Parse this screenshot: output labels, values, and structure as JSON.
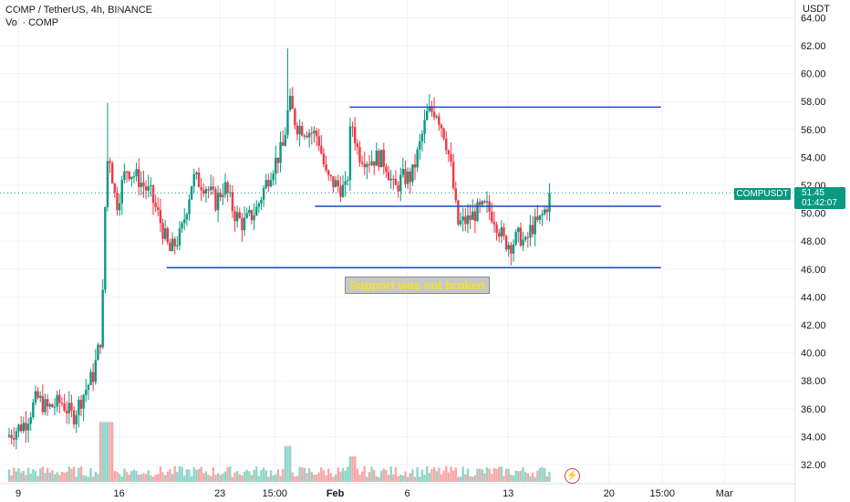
{
  "header": {
    "title": "COMP / TetherUS, 4h, BINANCE",
    "volume_label": "Vol · COMP"
  },
  "axis_unit": "USDT",
  "price_tag": {
    "symbol": "COMPUSDT",
    "price": "51.45",
    "countdown": "01:42:07"
  },
  "annotation": "Support was not broken",
  "alert_icon": "lightning-icon",
  "colors": {
    "up": "#089981",
    "down": "#f23645",
    "line": "#1848cc",
    "vol_up": "#8fd5c9",
    "vol_down": "#f7a9a7"
  },
  "chart_data": {
    "type": "candlestick",
    "ylim": [
      31,
      65
    ],
    "y_ticks": [
      "32.00",
      "34.00",
      "36.00",
      "38.00",
      "40.00",
      "42.00",
      "44.00",
      "46.00",
      "48.00",
      "50.00",
      "52.00",
      "54.00",
      "56.00",
      "58.00",
      "60.00",
      "62.00",
      "64.00"
    ],
    "x_ticks": [
      {
        "label": "9",
        "pos": 0.0
      },
      {
        "label": "16",
        "pos": 7.0
      },
      {
        "label": "23",
        "pos": 14.0
      },
      {
        "label": "15:00",
        "pos": 17.8
      },
      {
        "label": "Feb",
        "pos": 22.0,
        "bold": true
      },
      {
        "label": "6",
        "pos": 27.0
      },
      {
        "label": "13",
        "pos": 34.0
      },
      {
        "label": "20",
        "pos": 41.0
      },
      {
        "label": "15:00",
        "pos": 44.7
      },
      {
        "label": "Mar",
        "pos": 49.0
      }
    ],
    "current_price": 51.45,
    "horizontal_lines": [
      {
        "name": "resistance",
        "y": 57.6,
        "x_start": 23.0,
        "x_end": 44.6
      },
      {
        "name": "range-low",
        "y": 50.5,
        "x_start": 20.6,
        "x_end": 44.6
      },
      {
        "name": "support",
        "y": 46.1,
        "x_start": 10.3,
        "x_end": 44.6
      }
    ],
    "close_path": [
      [
        -0.8,
        34.0
      ],
      [
        0.5,
        35.0
      ],
      [
        1.3,
        36.8
      ],
      [
        2.0,
        36.0
      ],
      [
        3.0,
        36.5
      ],
      [
        3.8,
        35.4
      ],
      [
        4.5,
        37.0
      ],
      [
        5.2,
        38.4
      ],
      [
        5.8,
        41.5
      ],
      [
        6.1,
        53.0
      ],
      [
        6.3,
        54.5
      ],
      [
        6.8,
        50.5
      ],
      [
        7.5,
        53.2
      ],
      [
        8.3,
        52.5
      ],
      [
        9.2,
        51.3
      ],
      [
        9.8,
        49.6
      ],
      [
        10.5,
        47.2
      ],
      [
        11.3,
        48.5
      ],
      [
        12.1,
        52.5
      ],
      [
        13.0,
        52.0
      ],
      [
        13.7,
        50.8
      ],
      [
        14.3,
        52.0
      ],
      [
        15.0,
        50.0
      ],
      [
        15.6,
        49.2
      ],
      [
        16.5,
        50.2
      ],
      [
        17.5,
        53.0
      ],
      [
        18.4,
        54.8
      ],
      [
        18.8,
        58.0
      ],
      [
        19.3,
        56.3
      ],
      [
        20.0,
        56.0
      ],
      [
        20.8,
        55.5
      ],
      [
        21.4,
        52.5
      ],
      [
        22.1,
        52.0
      ],
      [
        22.8,
        51.6
      ],
      [
        23.1,
        56.8
      ],
      [
        23.6,
        54.3
      ],
      [
        24.3,
        53.8
      ],
      [
        25.0,
        54.0
      ],
      [
        25.5,
        53.6
      ],
      [
        26.1,
        51.6
      ],
      [
        26.6,
        52.5
      ],
      [
        27.3,
        52.6
      ],
      [
        27.9,
        55.0
      ],
      [
        28.4,
        57.2
      ],
      [
        29.0,
        57.4
      ],
      [
        29.6,
        55.6
      ],
      [
        30.0,
        53.5
      ],
      [
        30.5,
        49.2
      ],
      [
        31.2,
        49.5
      ],
      [
        31.8,
        50.1
      ],
      [
        32.5,
        50.4
      ],
      [
        33.0,
        49.8
      ],
      [
        33.7,
        48.0
      ],
      [
        34.2,
        47.8
      ],
      [
        34.8,
        48.4
      ],
      [
        35.2,
        47.7
      ],
      [
        35.6,
        49.0
      ],
      [
        36.1,
        49.3
      ],
      [
        36.6,
        50.3
      ],
      [
        37.0,
        51.45
      ]
    ],
    "volume_max": 8
  }
}
